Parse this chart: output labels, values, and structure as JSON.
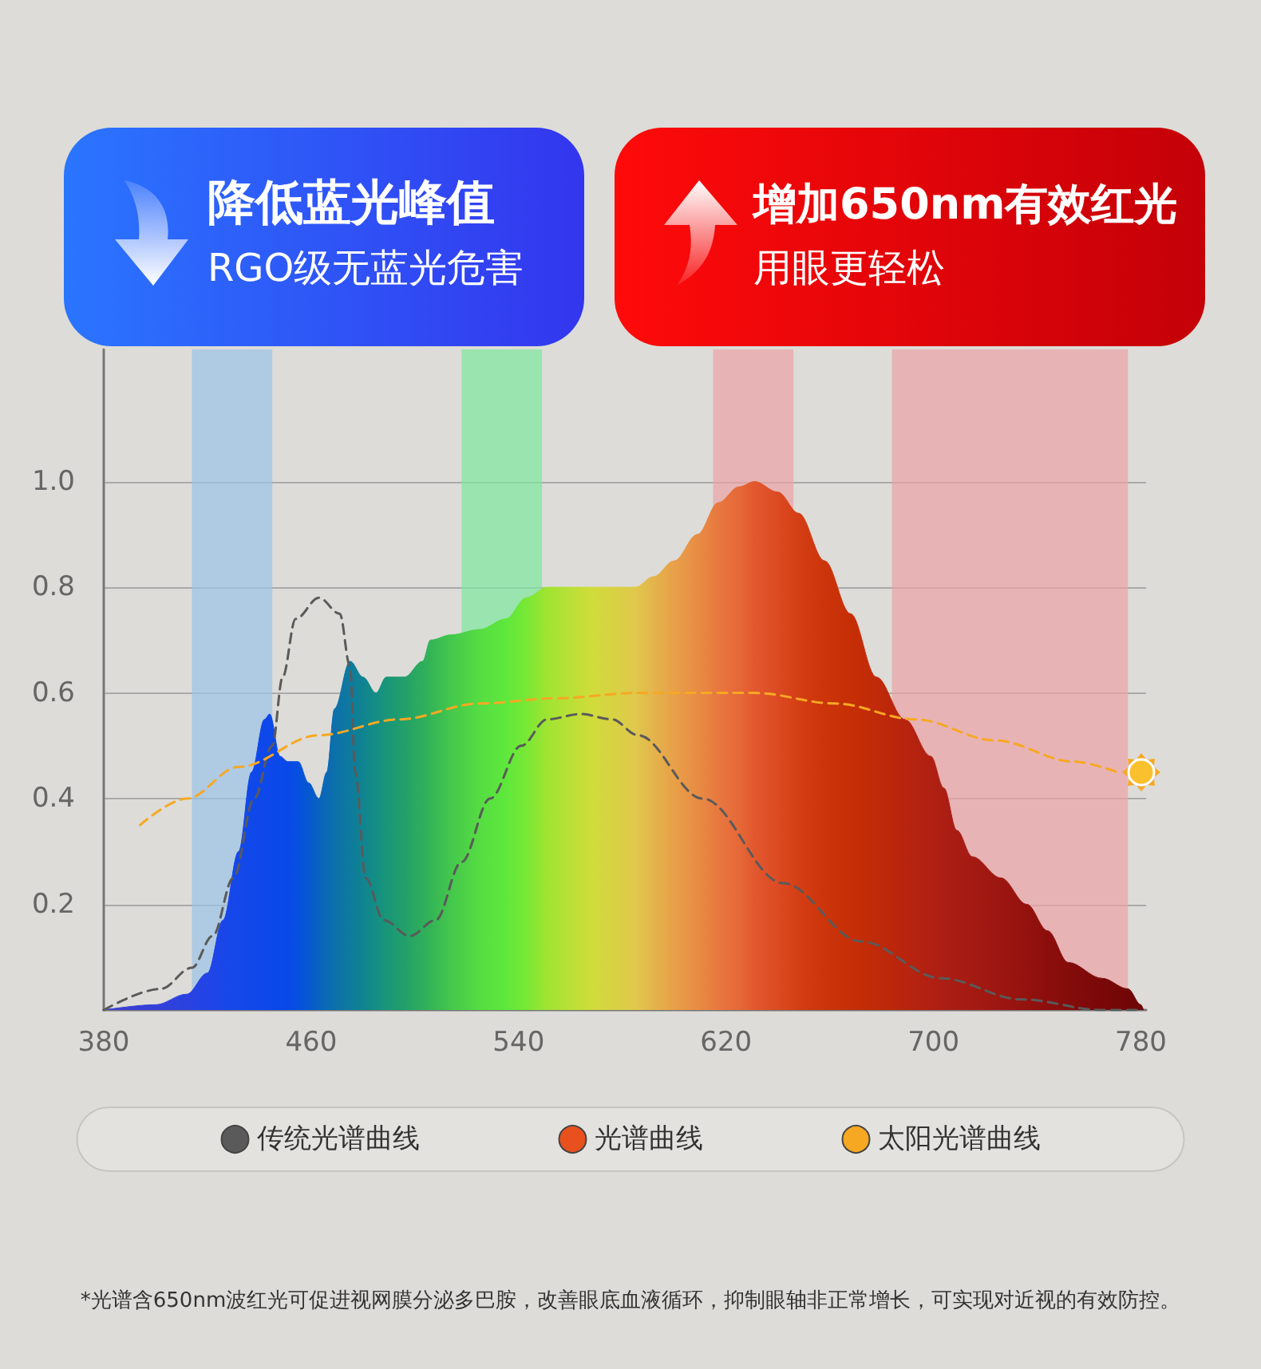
{
  "chart_data": {
    "type": "line",
    "annotations": [
      "降低蓝光峰值",
      "RGO级无蓝光危害",
      "增加650nm有效红光",
      "用眼更轻松",
      "*光谱含650nm波红光可促进视网膜分泌多巴胺，改善眼底血液循环，抑制眼轴非正常增长，可实现对近视的有效防控。"
    ],
    "series": [
      {
        "name": "传统光谱曲线",
        "color": "#5a5a5a",
        "line_style": "dashed",
        "x": [
          380,
          402,
          414,
          422,
          430,
          438,
          445,
          449,
          454,
          463,
          471,
          475,
          477,
          481,
          488,
          498,
          508,
          518,
          529,
          541,
          551,
          564,
          576,
          586,
          611,
          642,
          672,
          703,
          734,
          765,
          780
        ],
        "values": [
          0,
          0.04,
          0.08,
          0.14,
          0.25,
          0.4,
          0.5,
          0.63,
          0.74,
          0.78,
          0.75,
          0.65,
          0.45,
          0.25,
          0.17,
          0.14,
          0.17,
          0.28,
          0.4,
          0.5,
          0.55,
          0.56,
          0.55,
          0.52,
          0.4,
          0.24,
          0.13,
          0.06,
          0.02,
          0,
          0
        ]
      },
      {
        "name": "光谱曲线",
        "type": "area",
        "color": "#e8501e",
        "x": [
          380,
          400,
          412,
          420,
          426,
          432,
          437,
          442,
          444,
          448,
          451,
          455,
          459,
          463,
          466,
          469,
          475,
          480,
          485,
          489,
          496,
          503,
          506,
          514,
          525,
          535,
          543,
          551,
          568,
          585,
          592,
          600,
          609,
          617,
          625,
          631,
          640,
          648,
          658,
          668,
          678,
          689,
          699,
          704,
          709,
          715,
          726,
          736,
          744,
          752,
          765,
          775,
          780,
          781
        ],
        "values": [
          0,
          0.01,
          0.03,
          0.07,
          0.17,
          0.3,
          0.45,
          0.55,
          0.56,
          0.48,
          0.47,
          0.47,
          0.43,
          0.4,
          0.45,
          0.57,
          0.66,
          0.63,
          0.6,
          0.63,
          0.63,
          0.66,
          0.7,
          0.71,
          0.72,
          0.74,
          0.78,
          0.8,
          0.8,
          0.8,
          0.82,
          0.85,
          0.9,
          0.96,
          0.99,
          1.0,
          0.98,
          0.94,
          0.85,
          0.75,
          0.63,
          0.55,
          0.48,
          0.42,
          0.34,
          0.29,
          0.25,
          0.2,
          0.15,
          0.09,
          0.06,
          0.04,
          0.01,
          0
        ],
        "colors": [
          "#3a3fd0",
          "#3440d8",
          "#2a42e0",
          "#2244e6",
          "#1a46e8",
          "#1448ea",
          "#1048ea",
          "#0e48ea",
          "#0c48ea",
          "#0a48ea",
          "#0848e8",
          "#0650e0",
          "#0658d0",
          "#0862c0",
          "#0a6ab4",
          "#0c70aa",
          "#0e7a9e",
          "#108490",
          "#148e84",
          "#189678",
          "#22a06a",
          "#2eae5a",
          "#34b456",
          "#44c84c",
          "#56dc42",
          "#5ee83c",
          "#78e834",
          "#a0e432",
          "#d0dc3a",
          "#e0c84c",
          "#e4b44c",
          "#e8a048",
          "#e88c44",
          "#e87840",
          "#e66838",
          "#e2582e",
          "#dc4a22",
          "#d43e14",
          "#cc340a",
          "#c62e06",
          "#c02a08",
          "#b8240e",
          "#b02012",
          "#ac1e14",
          "#a81c14",
          "#a41a12",
          "#9c1610",
          "#94120e",
          "#8c0e0c",
          "#840c0a",
          "#7a0808",
          "#720606",
          "#6e0606",
          "#6c0606"
        ]
      },
      {
        "name": "太阳光谱曲线",
        "color": "#f7a823",
        "line_style": "dashed",
        "x": [
          394,
          412,
          432,
          463,
          494,
          525,
          555,
          586,
          600,
          631,
          662,
          693,
          724,
          754,
          771
        ],
        "values": [
          0.35,
          0.4,
          0.46,
          0.52,
          0.55,
          0.58,
          0.59,
          0.6,
          0.6,
          0.6,
          0.58,
          0.55,
          0.51,
          0.47,
          0.45
        ]
      }
    ],
    "bands": [
      {
        "axis": "x",
        "from": 414,
        "to": 445,
        "color": "#9cc3e8"
      },
      {
        "axis": "x",
        "from": 518,
        "to": 549,
        "color": "#7ee8a0"
      },
      {
        "axis": "x",
        "from": 615,
        "to": 646,
        "color": "#eaa3a6"
      },
      {
        "axis": "x",
        "from": 684,
        "to": 775,
        "color": "#eaa3a6"
      }
    ],
    "xlim": [
      380,
      782
    ],
    "xticks": [
      380,
      460,
      540,
      620,
      700,
      780
    ],
    "ylim": [
      0,
      1.25
    ],
    "yticks": [
      0.2,
      0.4,
      0.6,
      0.8,
      {
        "value": 1,
        "label": "1.0"
      }
    ],
    "grid": "y",
    "legend": "bottom",
    "marker": "none"
  }
}
